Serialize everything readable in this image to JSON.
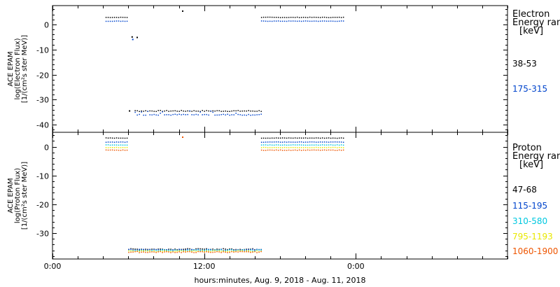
{
  "chart_data": [
    {
      "type": "scatter",
      "ylabel_lines": [
        "ACE EPAM",
        "log(Electron Flux)",
        "[1/(cm²s ster MeV)]"
      ],
      "legend_title_lines": [
        "Electron",
        "Energy ran",
        "[keV]"
      ],
      "ylim": [
        -43,
        7.5
      ],
      "yticks": [
        0,
        -10,
        -20,
        -30,
        -40
      ],
      "ytick_labels": [
        "0",
        "-10",
        "-20",
        "-30",
        "-40"
      ],
      "series": [
        {
          "name": "38-53",
          "color": "#000000",
          "segments": [
            {
              "x": [
                4.2,
                6.0
              ],
              "y": 2.8
            },
            {
              "x": 10.3,
              "y": 5.3
            },
            {
              "x": 6.3,
              "y": -5.0
            },
            {
              "x": 6.7,
              "y": -5.2
            },
            {
              "x": 6.1,
              "y": -34.5
            },
            {
              "x": [
                6.5,
                16.5
              ],
              "y": -34.5
            },
            {
              "x": [
                16.5,
                23.0
              ],
              "y": 2.8
            }
          ]
        },
        {
          "name": "175-315",
          "color": "#0044cc",
          "segments": [
            {
              "x": [
                4.2,
                6.0
              ],
              "y": 1.3
            },
            {
              "x": 6.35,
              "y": -6.0
            },
            {
              "x": [
                6.5,
                16.5
              ],
              "y": -36.0
            },
            {
              "x": [
                16.5,
                23.0
              ],
              "y": 1.3
            }
          ]
        }
      ]
    },
    {
      "type": "scatter",
      "ylabel_lines": [
        "ACE EPAM",
        "log(Proton Flux)",
        "[1/(cm²s ster MeV)]"
      ],
      "legend_title_lines": [
        "Proton",
        "Energy ran",
        "[keV]"
      ],
      "ylim": [
        -39,
        5
      ],
      "yticks": [
        0,
        -10,
        -20,
        -30
      ],
      "ytick_labels": [
        "0",
        "-10",
        "-20",
        "-30"
      ],
      "series": [
        {
          "name": "47-68",
          "color": "#000000",
          "segments": [
            {
              "x": [
                4.2,
                6.0
              ],
              "y": 3.0
            },
            {
              "x": [
                6.0,
                16.5
              ],
              "y": -35.6
            },
            {
              "x": [
                16.5,
                23.0
              ],
              "y": 3.0
            }
          ]
        },
        {
          "name": "115-195",
          "color": "#0044cc",
          "segments": [
            {
              "x": [
                4.2,
                6.0
              ],
              "y": 1.6
            },
            {
              "x": [
                6.0,
                16.5
              ],
              "y": -35.8
            },
            {
              "x": [
                16.5,
                23.0
              ],
              "y": 1.6
            }
          ]
        },
        {
          "name": "310-580",
          "color": "#00c8e0",
          "segments": [
            {
              "x": [
                4.2,
                6.0
              ],
              "y": 0.6
            },
            {
              "x": [
                6.0,
                16.5
              ],
              "y": -36.0
            },
            {
              "x": [
                16.5,
                23.0
              ],
              "y": 0.6
            }
          ]
        },
        {
          "name": "795-1193",
          "color": "#e8e800",
          "segments": [
            {
              "x": [
                4.2,
                6.0
              ],
              "y": -0.3
            },
            {
              "x": [
                6.0,
                16.5
              ],
              "y": -36.3
            },
            {
              "x": [
                16.5,
                23.0
              ],
              "y": -0.3
            }
          ]
        },
        {
          "name": "1060-1900",
          "color": "#ee5500",
          "segments": [
            {
              "x": [
                4.2,
                6.0
              ],
              "y": -1.2
            },
            {
              "x": 10.3,
              "y": 3.3
            },
            {
              "x": [
                6.0,
                16.5
              ],
              "y": -36.6
            },
            {
              "x": [
                16.5,
                23.0
              ],
              "y": -1.2
            }
          ]
        }
      ]
    }
  ],
  "x_axis": {
    "range_hours": [
      0,
      36
    ],
    "major_ticks": [
      0,
      12,
      24
    ],
    "major_labels": [
      "0:00",
      "12:00",
      "0:00"
    ],
    "minor_every_hours": 2,
    "title": "hours:minutes, Aug.  9, 2018 - Aug. 11, 2018"
  }
}
